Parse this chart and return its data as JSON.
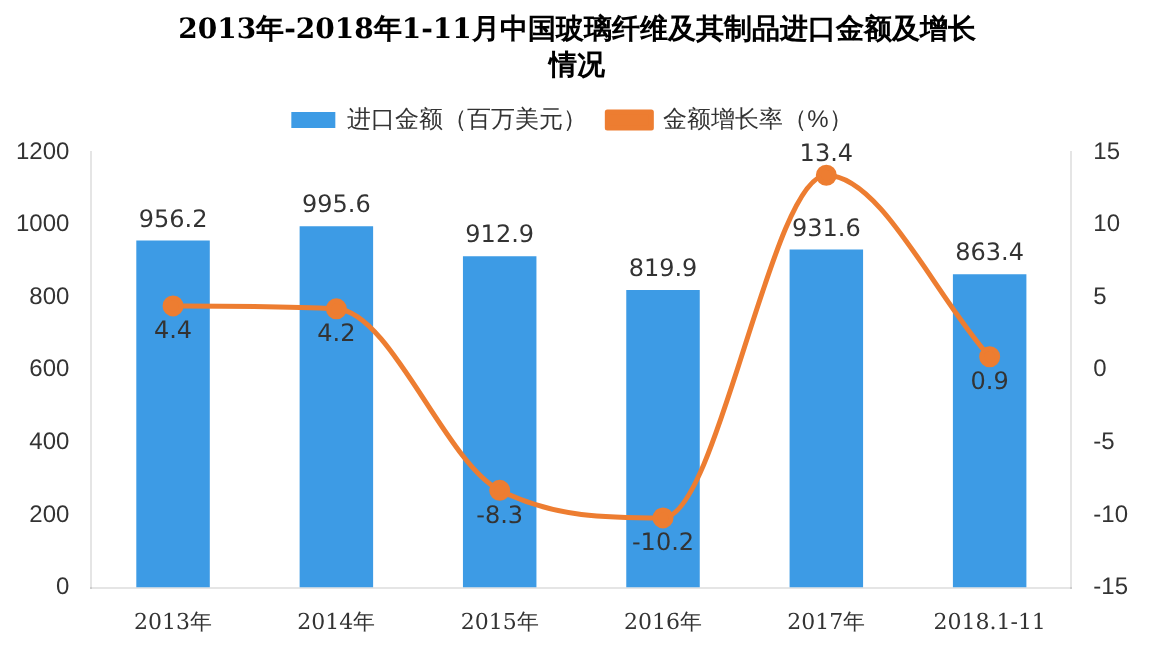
{
  "chart_data": {
    "type": "bar",
    "title": "2013年-2018年1-11月中国玻璃纤维及其制品进口金额及增长情况",
    "categories": [
      "2013年",
      "2014年",
      "2015年",
      "2016年",
      "2017年",
      "2018.1-11"
    ],
    "series": [
      {
        "name": "进口金额（百万美元）",
        "color": "#3d9be5",
        "values": [
          956.2,
          995.6,
          912.9,
          819.9,
          931.6,
          863.4
        ]
      },
      {
        "name": "金额增长率（%）",
        "type": "line",
        "axis": "y2",
        "color": "#ed7d31",
        "values": [
          4.4,
          4.2,
          -8.3,
          -10.2,
          13.4,
          0.9
        ]
      }
    ],
    "ylim": [
      0,
      1200
    ],
    "yticks": [
      0,
      200,
      400,
      600,
      800,
      1000,
      1200
    ],
    "y2lim": [
      -15,
      15
    ],
    "y2ticks": [
      -15,
      -10,
      -5,
      0,
      5,
      10,
      15
    ],
    "legend": "top",
    "marker": "circle",
    "grid": false,
    "data_labels": true
  }
}
